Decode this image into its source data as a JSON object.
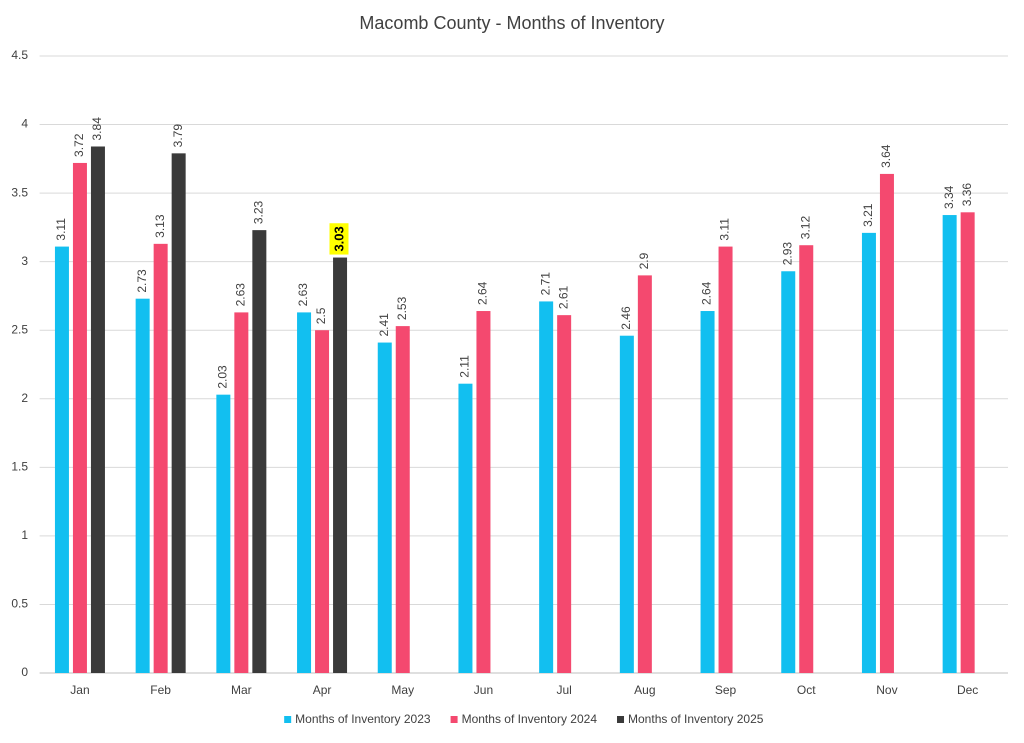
{
  "chart_data": {
    "type": "bar",
    "title": "Macomb County - Months of Inventory",
    "categories": [
      "Jan",
      "Feb",
      "Mar",
      "Apr",
      "May",
      "Jun",
      "Jul",
      "Aug",
      "Sep",
      "Oct",
      "Nov",
      "Dec"
    ],
    "series": [
      {
        "name": "Months of Inventory 2023",
        "color": "#12bff0",
        "values": [
          3.11,
          2.73,
          2.03,
          2.63,
          2.41,
          2.11,
          2.71,
          2.46,
          2.64,
          2.93,
          3.21,
          3.34
        ]
      },
      {
        "name": "Months of Inventory 2024",
        "color": "#f4496f",
        "values": [
          3.72,
          3.13,
          2.63,
          2.5,
          2.53,
          2.64,
          2.61,
          2.9,
          3.11,
          3.12,
          3.64,
          3.36
        ]
      },
      {
        "name": "Months of Inventory 2025",
        "color": "#3a3a3a",
        "values": [
          3.84,
          3.79,
          3.23,
          3.03,
          null,
          null,
          null,
          null,
          null,
          null,
          null,
          null
        ]
      }
    ],
    "ylim": [
      0,
      4.5
    ],
    "yticks": [
      0,
      0.5,
      1,
      1.5,
      2,
      2.5,
      3,
      3.5,
      4,
      4.5
    ],
    "grid": true,
    "legend": "bottom",
    "highlight": {
      "series": 2,
      "index": 3,
      "color": "#ffff00"
    }
  }
}
